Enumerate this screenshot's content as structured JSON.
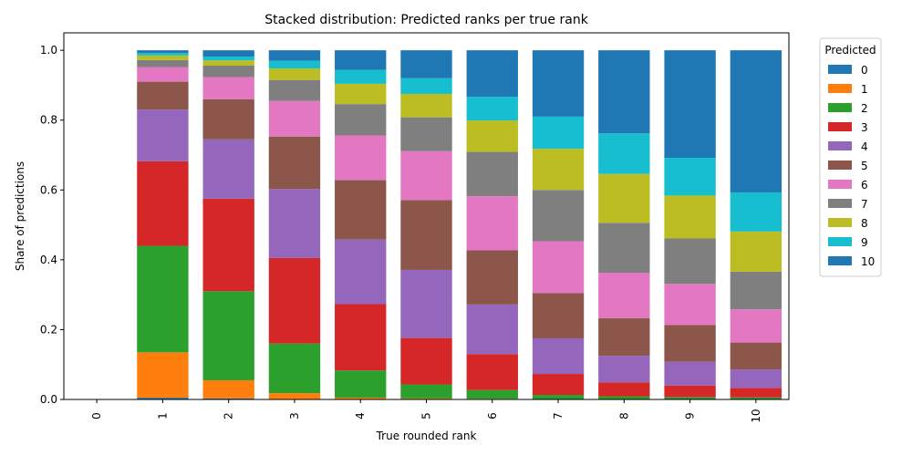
{
  "chart_data": {
    "type": "bar",
    "stacked": true,
    "title": "Stacked distribution: Predicted ranks per true rank",
    "xlabel": "True rounded rank",
    "ylabel": "Share of predictions",
    "ylim": [
      0,
      1.05
    ],
    "yticks": [
      "0.0",
      "0.2",
      "0.4",
      "0.6",
      "0.8",
      "1.0"
    ],
    "categories": [
      "0",
      "1",
      "2",
      "3",
      "4",
      "5",
      "6",
      "7",
      "8",
      "9",
      "10"
    ],
    "legend": {
      "title": "Predicted",
      "placement": "outside-right"
    },
    "series": [
      {
        "name": "0",
        "color": "#1f77b4",
        "values": [
          0,
          0.005,
          0.003,
          0,
          0,
          0,
          0,
          0,
          0,
          0,
          0
        ]
      },
      {
        "name": "1",
        "color": "#ff7f0e",
        "values": [
          0,
          0.13,
          0.052,
          0.018,
          0.005,
          0.003,
          0.002,
          0.001,
          0.001,
          0.001,
          0.001
        ]
      },
      {
        "name": "2",
        "color": "#2ca02c",
        "values": [
          0,
          0.305,
          0.255,
          0.142,
          0.078,
          0.04,
          0.025,
          0.012,
          0.008,
          0.006,
          0.005
        ]
      },
      {
        "name": "3",
        "color": "#d62728",
        "values": [
          0,
          0.242,
          0.265,
          0.245,
          0.19,
          0.133,
          0.103,
          0.06,
          0.04,
          0.033,
          0.027
        ]
      },
      {
        "name": "4",
        "color": "#9467bd",
        "values": [
          0,
          0.148,
          0.17,
          0.198,
          0.185,
          0.195,
          0.142,
          0.102,
          0.076,
          0.068,
          0.053
        ]
      },
      {
        "name": "5",
        "color": "#8c564b",
        "values": [
          0,
          0.08,
          0.115,
          0.15,
          0.17,
          0.2,
          0.155,
          0.13,
          0.108,
          0.105,
          0.077
        ]
      },
      {
        "name": "6",
        "color": "#e377c2",
        "values": [
          0,
          0.042,
          0.063,
          0.102,
          0.128,
          0.14,
          0.155,
          0.148,
          0.13,
          0.118,
          0.095
        ]
      },
      {
        "name": "7",
        "color": "#7f7f7f",
        "values": [
          0,
          0.02,
          0.033,
          0.06,
          0.09,
          0.097,
          0.127,
          0.147,
          0.143,
          0.13,
          0.108
        ]
      },
      {
        "name": "8",
        "color": "#bcbd22",
        "values": [
          0,
          0.013,
          0.015,
          0.033,
          0.058,
          0.067,
          0.09,
          0.118,
          0.14,
          0.123,
          0.115
        ]
      },
      {
        "name": "9",
        "color": "#17becf",
        "values": [
          0,
          0.007,
          0.011,
          0.022,
          0.04,
          0.045,
          0.068,
          0.092,
          0.116,
          0.108,
          0.112
        ]
      },
      {
        "name": "10",
        "color": "#1f77b4",
        "values": [
          0,
          0.008,
          0.018,
          0.03,
          0.056,
          0.08,
          0.133,
          0.19,
          0.238,
          0.308,
          0.407
        ]
      }
    ]
  }
}
